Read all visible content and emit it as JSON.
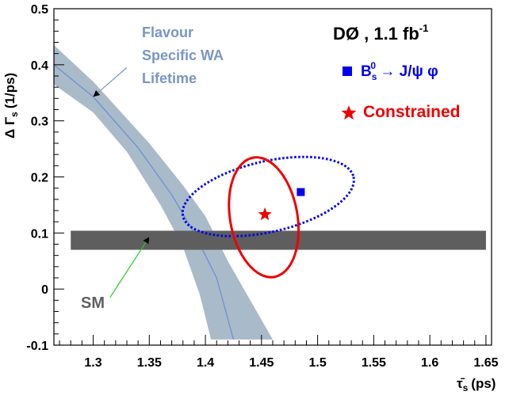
{
  "chart_data": {
    "type": "scatter",
    "title": "DØ , 1.1 fb",
    "title_superscript": "-1",
    "xlabel": "τ̄",
    "xlabel_sub": "s",
    "xlabel_unit": "(ps)",
    "ylabel": "Δ Γ",
    "ylabel_sub": "s",
    "ylabel_unit": "(1/ps)",
    "xlim": [
      1.265,
      1.655
    ],
    "ylim": [
      -0.1,
      0.5
    ],
    "xticks": [
      1.3,
      1.35,
      1.4,
      1.45,
      1.5,
      1.55,
      1.6,
      1.65
    ],
    "xtick_labels": [
      "1.3",
      "1.35",
      "1.4",
      "1.45",
      "1.5",
      "1.55",
      "1.6",
      "1.65"
    ],
    "yticks": [
      -0.1,
      0,
      0.1,
      0.2,
      0.3,
      0.4,
      0.5
    ],
    "ytick_labels": [
      "-0.1",
      "0",
      "0.1",
      "0.2",
      "0.3",
      "0.4",
      "0.5"
    ],
    "grid": false,
    "legend_position": "top-right",
    "legend": [
      {
        "name": "Bs0 → J/ψ φ",
        "label_main": "B",
        "label_sub": "s",
        "label_sup": "0",
        "label_rest": " → J/ψ φ",
        "marker": "square",
        "color": "#0000ee"
      },
      {
        "name": "Constrained",
        "label_main": "Constrained",
        "marker": "star",
        "color": "#ee0000"
      }
    ],
    "series": [
      {
        "name": "Flavour Specific WA Lifetime",
        "kind": "band",
        "color": "#a9bac9",
        "upper": [
          [
            1.265,
            0.435
          ],
          [
            1.3,
            0.37
          ],
          [
            1.35,
            0.26
          ],
          [
            1.38,
            0.185
          ],
          [
            1.4,
            0.13
          ],
          [
            1.42,
            0.05
          ],
          [
            1.44,
            -0.02
          ],
          [
            1.46,
            -0.09
          ]
        ],
        "lower": [
          [
            1.265,
            0.365
          ],
          [
            1.3,
            0.315
          ],
          [
            1.33,
            0.245
          ],
          [
            1.36,
            0.15
          ],
          [
            1.38,
            0.075
          ],
          [
            1.395,
            -0.01
          ],
          [
            1.405,
            -0.09
          ]
        ],
        "center": [
          [
            1.265,
            0.4
          ],
          [
            1.3,
            0.343
          ],
          [
            1.34,
            0.252
          ],
          [
            1.37,
            0.168
          ],
          [
            1.39,
            0.1
          ],
          [
            1.41,
            0.02
          ],
          [
            1.425,
            -0.09
          ]
        ]
      },
      {
        "name": "SM",
        "kind": "band",
        "color": "#5e5e5e",
        "x_range": [
          1.28,
          1.65
        ],
        "y_range": [
          0.07,
          0.104
        ]
      },
      {
        "name": "Bs0 → J/ψ φ",
        "kind": "contour",
        "style": "dotted",
        "color": "#0000ee",
        "center": [
          1.456,
          0.165
        ],
        "semi_axes": [
          0.078,
          0.063
        ],
        "rotation_deg": -13
      },
      {
        "name": "Bs0 → J/ψ φ",
        "kind": "point",
        "marker": "square",
        "color": "#0000ee",
        "x": 1.485,
        "y": 0.173
      },
      {
        "name": "Constrained",
        "kind": "contour",
        "style": "solid",
        "color": "#ee0000",
        "center": [
          1.452,
          0.128
        ],
        "semi_axes": [
          0.03,
          0.108
        ],
        "rotation_deg": -10
      },
      {
        "name": "Constrained",
        "kind": "point",
        "marker": "star",
        "color": "#ee0000",
        "x": 1.453,
        "y": 0.133
      }
    ],
    "annotations": [
      {
        "name": "wa-label",
        "lines": [
          "Flavour",
          "Specific WA",
          "Lifetime"
        ],
        "color": "#7a95c4",
        "arrow_from": [
          1.33,
          0.395
        ],
        "arrow_to": [
          1.3,
          0.343
        ]
      },
      {
        "name": "sm-label",
        "lines": [
          "SM"
        ],
        "color": "#606060",
        "arrow_from": [
          1.315,
          -0.015
        ],
        "arrow_to": [
          1.35,
          0.093
        ]
      }
    ]
  }
}
